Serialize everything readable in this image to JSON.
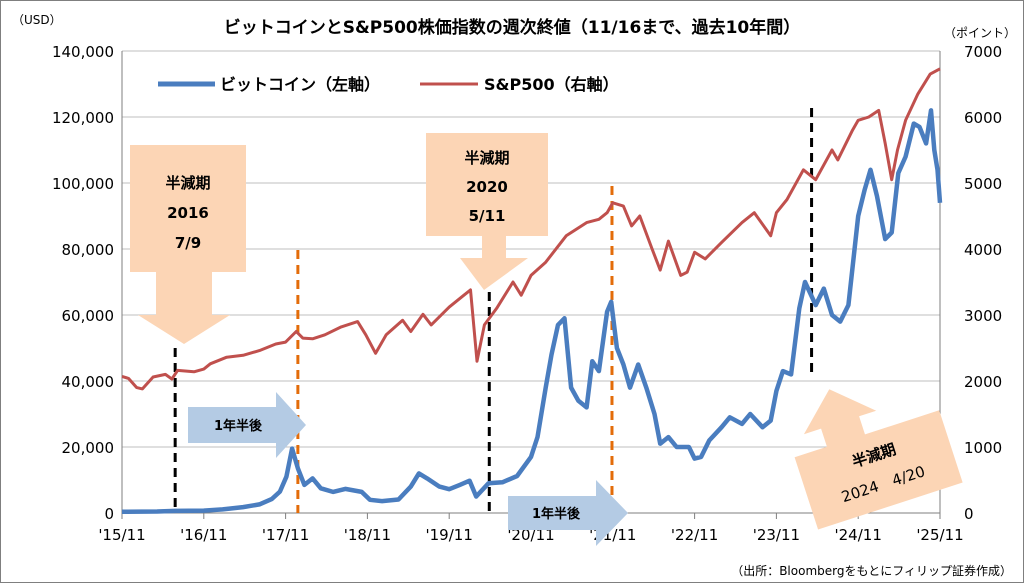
{
  "chart_data": {
    "type": "line",
    "title": "ビットコインとS&P500株価指数の週次終値（11/16まで、過去10年間）",
    "left_axis_unit": "（USD）",
    "right_axis_unit": "（ポイント）",
    "source": "（出所：Bloombergをもとにフィリップ証券作成）",
    "y_left": {
      "lim": [
        0,
        140000
      ],
      "ticks": [
        "0",
        "20,000",
        "40,000",
        "60,000",
        "80,000",
        "100,000",
        "120,000",
        "140,000"
      ],
      "tick_values": [
        0,
        20000,
        40000,
        60000,
        80000,
        100000,
        120000,
        140000
      ]
    },
    "y_right": {
      "lim": [
        0,
        7000
      ],
      "ticks": [
        "0",
        "1000",
        "2000",
        "3000",
        "4000",
        "5000",
        "6000",
        "7000"
      ],
      "tick_values": [
        0,
        1000,
        2000,
        3000,
        4000,
        5000,
        6000,
        7000
      ]
    },
    "x_ticks": [
      {
        "label": "'15/11",
        "x": 2015.87
      },
      {
        "label": "'16/11",
        "x": 2016.87
      },
      {
        "label": "'17/11",
        "x": 2017.87
      },
      {
        "label": "'18/11",
        "x": 2018.87
      },
      {
        "label": "'19/11",
        "x": 2019.87
      },
      {
        "label": "'20/11",
        "x": 2020.87
      },
      {
        "label": "'21/11",
        "x": 2021.87
      },
      {
        "label": "'22/11",
        "x": 2022.87
      },
      {
        "label": "'23/11",
        "x": 2023.87
      },
      {
        "label": "'24/11",
        "x": 2024.87
      },
      {
        "label": "'25/11",
        "x": 2025.87
      }
    ],
    "grid": true,
    "legend": "top-left",
    "series": [
      {
        "name": "ビットコイン（左軸）",
        "axis": "left",
        "color": "#4a7dbf",
        "points": [
          [
            2015.87,
            350
          ],
          [
            2016.3,
            450
          ],
          [
            2016.52,
            650
          ],
          [
            2016.87,
            740
          ],
          [
            2017.1,
            1100
          ],
          [
            2017.35,
            1800
          ],
          [
            2017.55,
            2600
          ],
          [
            2017.7,
            4200
          ],
          [
            2017.8,
            6500
          ],
          [
            2017.88,
            11000
          ],
          [
            2017.95,
            19500
          ],
          [
            2018.02,
            13500
          ],
          [
            2018.1,
            8500
          ],
          [
            2018.2,
            10500
          ],
          [
            2018.3,
            7500
          ],
          [
            2018.45,
            6400
          ],
          [
            2018.6,
            7300
          ],
          [
            2018.8,
            6400
          ],
          [
            2018.9,
            4000
          ],
          [
            2019.05,
            3600
          ],
          [
            2019.25,
            4100
          ],
          [
            2019.4,
            8000
          ],
          [
            2019.5,
            12000
          ],
          [
            2019.6,
            10500
          ],
          [
            2019.75,
            8000
          ],
          [
            2019.87,
            7200
          ],
          [
            2020.0,
            8500
          ],
          [
            2020.12,
            9800
          ],
          [
            2020.2,
            5000
          ],
          [
            2020.35,
            9000
          ],
          [
            2020.52,
            9300
          ],
          [
            2020.7,
            11200
          ],
          [
            2020.87,
            17000
          ],
          [
            2020.95,
            23000
          ],
          [
            2021.05,
            38000
          ],
          [
            2021.12,
            48000
          ],
          [
            2021.2,
            57000
          ],
          [
            2021.28,
            59000
          ],
          [
            2021.36,
            38000
          ],
          [
            2021.45,
            34000
          ],
          [
            2021.55,
            32000
          ],
          [
            2021.62,
            46000
          ],
          [
            2021.7,
            43000
          ],
          [
            2021.8,
            61000
          ],
          [
            2021.85,
            64000
          ],
          [
            2021.92,
            50000
          ],
          [
            2022.0,
            45000
          ],
          [
            2022.08,
            38000
          ],
          [
            2022.18,
            45000
          ],
          [
            2022.28,
            38000
          ],
          [
            2022.38,
            30000
          ],
          [
            2022.45,
            21000
          ],
          [
            2022.55,
            23000
          ],
          [
            2022.65,
            20000
          ],
          [
            2022.8,
            20000
          ],
          [
            2022.87,
            16500
          ],
          [
            2022.95,
            17000
          ],
          [
            2023.05,
            22000
          ],
          [
            2023.2,
            26000
          ],
          [
            2023.3,
            29000
          ],
          [
            2023.45,
            27000
          ],
          [
            2023.55,
            30000
          ],
          [
            2023.7,
            26000
          ],
          [
            2023.8,
            28000
          ],
          [
            2023.87,
            37000
          ],
          [
            2023.95,
            43000
          ],
          [
            2024.05,
            42000
          ],
          [
            2024.15,
            62000
          ],
          [
            2024.22,
            70000
          ],
          [
            2024.35,
            63000
          ],
          [
            2024.45,
            68000
          ],
          [
            2024.55,
            60000
          ],
          [
            2024.65,
            58000
          ],
          [
            2024.75,
            63000
          ],
          [
            2024.87,
            90000
          ],
          [
            2024.95,
            98000
          ],
          [
            2025.02,
            104000
          ],
          [
            2025.1,
            96000
          ],
          [
            2025.2,
            83000
          ],
          [
            2025.28,
            85000
          ],
          [
            2025.36,
            103000
          ],
          [
            2025.45,
            108000
          ],
          [
            2025.55,
            118000
          ],
          [
            2025.62,
            117000
          ],
          [
            2025.7,
            112000
          ],
          [
            2025.76,
            122000
          ],
          [
            2025.8,
            110000
          ],
          [
            2025.84,
            104000
          ],
          [
            2025.87,
            94000
          ]
        ]
      },
      {
        "name": "S&P500（右軸）",
        "axis": "right",
        "color": "#c0504d",
        "points": [
          [
            2015.87,
            2070
          ],
          [
            2015.95,
            2040
          ],
          [
            2016.05,
            1900
          ],
          [
            2016.12,
            1880
          ],
          [
            2016.25,
            2060
          ],
          [
            2016.4,
            2100
          ],
          [
            2016.48,
            2030
          ],
          [
            2016.55,
            2160
          ],
          [
            2016.75,
            2140
          ],
          [
            2016.87,
            2180
          ],
          [
            2016.95,
            2260
          ],
          [
            2017.15,
            2360
          ],
          [
            2017.35,
            2390
          ],
          [
            2017.55,
            2460
          ],
          [
            2017.75,
            2560
          ],
          [
            2017.87,
            2590
          ],
          [
            2018.0,
            2750
          ],
          [
            2018.08,
            2650
          ],
          [
            2018.2,
            2640
          ],
          [
            2018.35,
            2700
          ],
          [
            2018.55,
            2820
          ],
          [
            2018.75,
            2900
          ],
          [
            2018.85,
            2700
          ],
          [
            2018.97,
            2420
          ],
          [
            2019.1,
            2700
          ],
          [
            2019.3,
            2920
          ],
          [
            2019.4,
            2750
          ],
          [
            2019.55,
            3010
          ],
          [
            2019.65,
            2850
          ],
          [
            2019.87,
            3120
          ],
          [
            2020.05,
            3300
          ],
          [
            2020.13,
            3380
          ],
          [
            2020.21,
            2300
          ],
          [
            2020.3,
            2850
          ],
          [
            2020.45,
            3100
          ],
          [
            2020.65,
            3500
          ],
          [
            2020.75,
            3300
          ],
          [
            2020.87,
            3600
          ],
          [
            2021.05,
            3800
          ],
          [
            2021.3,
            4200
          ],
          [
            2021.55,
            4400
          ],
          [
            2021.7,
            4450
          ],
          [
            2021.8,
            4550
          ],
          [
            2021.87,
            4700
          ],
          [
            2022.0,
            4650
          ],
          [
            2022.1,
            4350
          ],
          [
            2022.2,
            4500
          ],
          [
            2022.35,
            4000
          ],
          [
            2022.45,
            3680
          ],
          [
            2022.55,
            4120
          ],
          [
            2022.7,
            3600
          ],
          [
            2022.78,
            3650
          ],
          [
            2022.87,
            3950
          ],
          [
            2023.0,
            3850
          ],
          [
            2023.2,
            4100
          ],
          [
            2023.45,
            4400
          ],
          [
            2023.6,
            4550
          ],
          [
            2023.8,
            4200
          ],
          [
            2023.87,
            4550
          ],
          [
            2024.0,
            4750
          ],
          [
            2024.2,
            5200
          ],
          [
            2024.35,
            5050
          ],
          [
            2024.55,
            5500
          ],
          [
            2024.62,
            5350
          ],
          [
            2024.8,
            5800
          ],
          [
            2024.87,
            5950
          ],
          [
            2025.0,
            6000
          ],
          [
            2025.12,
            6100
          ],
          [
            2025.2,
            5600
          ],
          [
            2025.28,
            5050
          ],
          [
            2025.35,
            5500
          ],
          [
            2025.45,
            5950
          ],
          [
            2025.6,
            6350
          ],
          [
            2025.75,
            6650
          ],
          [
            2025.87,
            6730
          ]
        ]
      }
    ],
    "annotations": [
      {
        "type": "halving",
        "lines": [
          "半減期",
          "2016",
          "7/9"
        ],
        "x": 2016.52
      },
      {
        "type": "halving",
        "lines": [
          "半減期",
          "2020",
          "5/11"
        ],
        "x": 2020.36
      },
      {
        "type": "halving",
        "lines": [
          "半減期",
          "2024　4/20"
        ],
        "x": 2024.3
      },
      {
        "type": "plus-1.5y",
        "label": "1年半後",
        "x": 2018.02
      },
      {
        "type": "plus-1.5y",
        "label": "1年半後",
        "x": 2021.86
      }
    ]
  }
}
